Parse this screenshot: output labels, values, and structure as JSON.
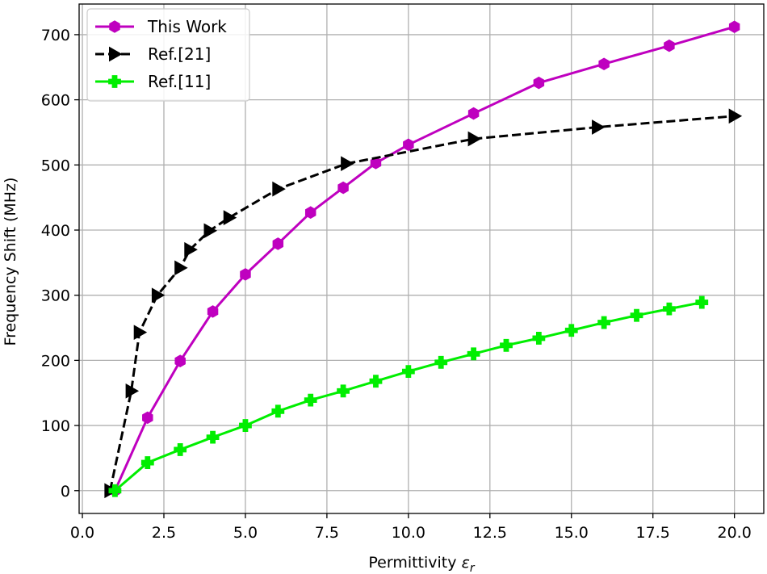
{
  "chart_data": {
    "type": "line",
    "xlabel": "Permittivity",
    "xlabel_symbol": "ε",
    "xlabel_subscript": "r",
    "ylabel": "Frequency Shift (MHz)",
    "xlim": [
      -0.1,
      20.9
    ],
    "ylim": [
      -35,
      747
    ],
    "xticks": [
      0.0,
      2.5,
      5.0,
      7.5,
      10.0,
      12.5,
      15.0,
      17.5,
      20.0
    ],
    "xtick_labels": [
      "0.0",
      "2.5",
      "5.0",
      "7.5",
      "10.0",
      "12.5",
      "15.0",
      "17.5",
      "20.0"
    ],
    "yticks": [
      0,
      100,
      200,
      300,
      400,
      500,
      600,
      700
    ],
    "ytick_labels": [
      "0",
      "100",
      "200",
      "300",
      "400",
      "500",
      "600",
      "700"
    ],
    "grid": true,
    "legend_position": "top-left",
    "series": [
      {
        "name": "This Work",
        "color": "#bf00bf",
        "line_style": "solid",
        "marker": "hexagon",
        "x": [
          1,
          2,
          3,
          4,
          5,
          6,
          7,
          8,
          9,
          10,
          12,
          14,
          16,
          18,
          20
        ],
        "y": [
          0,
          112,
          199,
          275,
          332,
          379,
          427,
          465,
          503,
          531,
          579,
          626,
          655,
          683,
          712
        ]
      },
      {
        "name": "Ref.[21]",
        "color": "#000000",
        "line_style": "dashed",
        "marker": "triangle-right",
        "x": [
          0.85,
          1.5,
          1.75,
          2.3,
          3.0,
          3.3,
          3.9,
          4.5,
          6.0,
          8.1,
          12.0,
          15.8,
          20.0
        ],
        "y": [
          0,
          153,
          243,
          300,
          342,
          370,
          399,
          419,
          463,
          502,
          540,
          558,
          575
        ]
      },
      {
        "name": "Ref.[11]",
        "color": "#00ee00",
        "line_style": "solid",
        "marker": "plus",
        "x": [
          1,
          2,
          3,
          4,
          5,
          6,
          7,
          8,
          9,
          10,
          11,
          12,
          13,
          14,
          15,
          16,
          17,
          18,
          19
        ],
        "y": [
          0,
          43,
          63,
          82,
          100,
          122,
          139,
          153,
          168,
          183,
          197,
          210,
          223,
          234,
          246,
          258,
          269,
          279,
          289
        ]
      }
    ]
  }
}
